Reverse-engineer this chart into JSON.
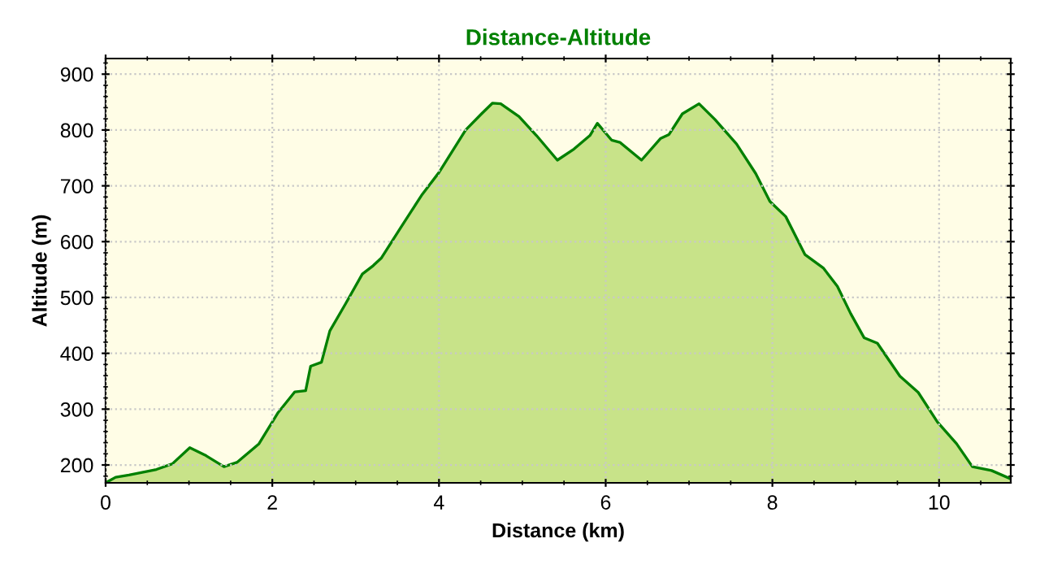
{
  "chart_data": {
    "type": "area",
    "title": "Distance-Altitude",
    "xlabel": "Distance (km)",
    "ylabel": "Altitude (m)",
    "x": [
      0,
      0.12,
      0.28,
      0.61,
      0.8,
      1.01,
      1.19,
      1.42,
      1.58,
      1.84,
      2.07,
      2.27,
      2.4,
      2.46,
      2.59,
      2.69,
      2.88,
      3.08,
      3.21,
      3.31,
      3.54,
      3.8,
      4.0,
      4.32,
      4.51,
      4.64,
      4.74,
      4.96,
      5.17,
      5.42,
      5.62,
      5.81,
      5.9,
      6.07,
      6.17,
      6.43,
      6.66,
      6.76,
      6.92,
      7.12,
      7.31,
      7.57,
      7.8,
      7.97,
      8.16,
      8.39,
      8.61,
      8.78,
      8.94,
      9.1,
      9.26,
      9.53,
      9.75,
      9.98,
      10.21,
      10.4,
      10.63,
      10.86
    ],
    "series": [
      {
        "color": "#008000",
        "values": [
          168,
          178,
          182,
          192,
          202,
          231,
          218,
          197,
          205,
          238,
          294,
          331,
          333,
          377,
          384,
          440,
          489,
          542,
          557,
          571,
          625,
          685,
          724,
          800,
          829,
          848,
          847,
          824,
          790,
          746,
          766,
          790,
          812,
          782,
          778,
          746,
          785,
          792,
          829,
          847,
          819,
          775,
          722,
          672,
          645,
          577,
          553,
          520,
          471,
          428,
          418,
          359,
          330,
          277,
          238,
          197,
          190,
          175
        ]
      }
    ],
    "xlim": [
      0,
      10.86
    ],
    "ylim": [
      168,
      928
    ],
    "xticks": [
      0,
      2,
      4,
      6,
      8,
      10
    ],
    "yticks": [
      200,
      300,
      400,
      500,
      600,
      700,
      800,
      900
    ],
    "grid": true,
    "legend": false
  }
}
